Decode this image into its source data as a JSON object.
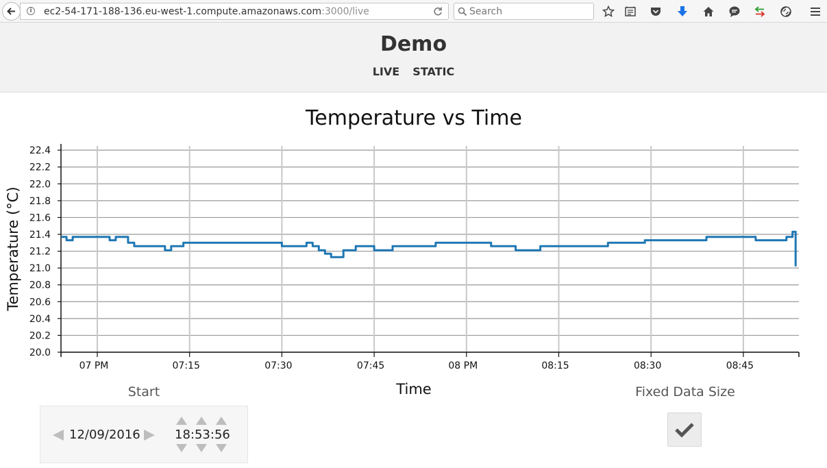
{
  "browser": {
    "url_host": "ec2-54-171-188-136.eu-west-1.compute.amazonaws.com",
    "url_rest": ":3000/live",
    "search_placeholder": "Search",
    "icons": [
      "back-arrow-icon",
      "info-icon",
      "reload-icon",
      "search-icon",
      "bookmark-star-icon",
      "reading-list-icon",
      "pocket-icon",
      "download-icon",
      "home-icon",
      "chat-icon",
      "sync-arrows-icon",
      "tracking-icon",
      "hamburger-menu-icon"
    ]
  },
  "header": {
    "title": "Demo",
    "nav": [
      {
        "label": "LIVE"
      },
      {
        "label": "STATIC"
      }
    ]
  },
  "chart_data": {
    "type": "line",
    "title": "Temperature vs Time",
    "xlabel": "Time",
    "ylabel": "Temperature (°C)",
    "x_tick_labels": [
      "07 PM",
      "07:15",
      "07:30",
      "07:45",
      "08 PM",
      "08:15",
      "08:30",
      "08:45"
    ],
    "y_tick_labels": [
      "20.0",
      "20.2",
      "20.4",
      "20.6",
      "20.8",
      "21.0",
      "21.2",
      "21.4",
      "21.6",
      "21.8",
      "22.0",
      "22.2",
      "22.4"
    ],
    "ylim": [
      20.0,
      22.45
    ],
    "grid": true,
    "line_color": "#1f77b4",
    "series": [
      {
        "x": [
          "18:53:56",
          "18:54",
          "18:55",
          "18:56",
          "18:57",
          "18:58",
          "18:59",
          "19:00",
          "19:01",
          "19:02",
          "19:03",
          "19:04",
          "19:05",
          "19:06",
          "19:08",
          "19:10",
          "19:11",
          "19:12",
          "19:13",
          "19:14",
          "19:16",
          "19:18",
          "19:20",
          "19:22",
          "19:24",
          "19:26",
          "19:28",
          "19:30",
          "19:32",
          "19:34",
          "19:35",
          "19:36",
          "19:37",
          "19:38",
          "19:40",
          "19:42",
          "19:44",
          "19:45",
          "19:46",
          "19:48",
          "19:50",
          "19:52",
          "19:55",
          "19:58",
          "20:00",
          "20:02",
          "20:04",
          "20:06",
          "20:08",
          "20:10",
          "20:12",
          "20:15",
          "20:17",
          "20:19",
          "20:21",
          "20:23",
          "20:25",
          "20:27",
          "20:29",
          "20:31",
          "20:33",
          "20:35",
          "20:37",
          "20:39",
          "20:41",
          "20:43",
          "20:45",
          "20:47",
          "20:49",
          "20:51",
          "20:52",
          "20:53",
          "20:53:30"
        ],
        "y": [
          21.37,
          21.37,
          21.33,
          21.37,
          21.37,
          21.37,
          21.37,
          21.37,
          21.37,
          21.33,
          21.37,
          21.37,
          21.3,
          21.26,
          21.26,
          21.26,
          21.21,
          21.26,
          21.26,
          21.3,
          21.3,
          21.3,
          21.3,
          21.3,
          21.3,
          21.3,
          21.3,
          21.26,
          21.26,
          21.3,
          21.26,
          21.21,
          21.17,
          21.13,
          21.21,
          21.26,
          21.26,
          21.21,
          21.21,
          21.26,
          21.26,
          21.26,
          21.3,
          21.3,
          21.3,
          21.3,
          21.26,
          21.26,
          21.21,
          21.21,
          21.26,
          21.26,
          21.26,
          21.26,
          21.26,
          21.3,
          21.3,
          21.3,
          21.33,
          21.33,
          21.33,
          21.33,
          21.33,
          21.37,
          21.37,
          21.37,
          21.37,
          21.33,
          21.33,
          21.33,
          21.37,
          21.43,
          21.02
        ]
      }
    ]
  },
  "controls": {
    "start_label": "Start",
    "date": "12/09/2016",
    "time": "18:53:56",
    "fixed_label": "Fixed Data Size",
    "fixed_checked": true
  }
}
